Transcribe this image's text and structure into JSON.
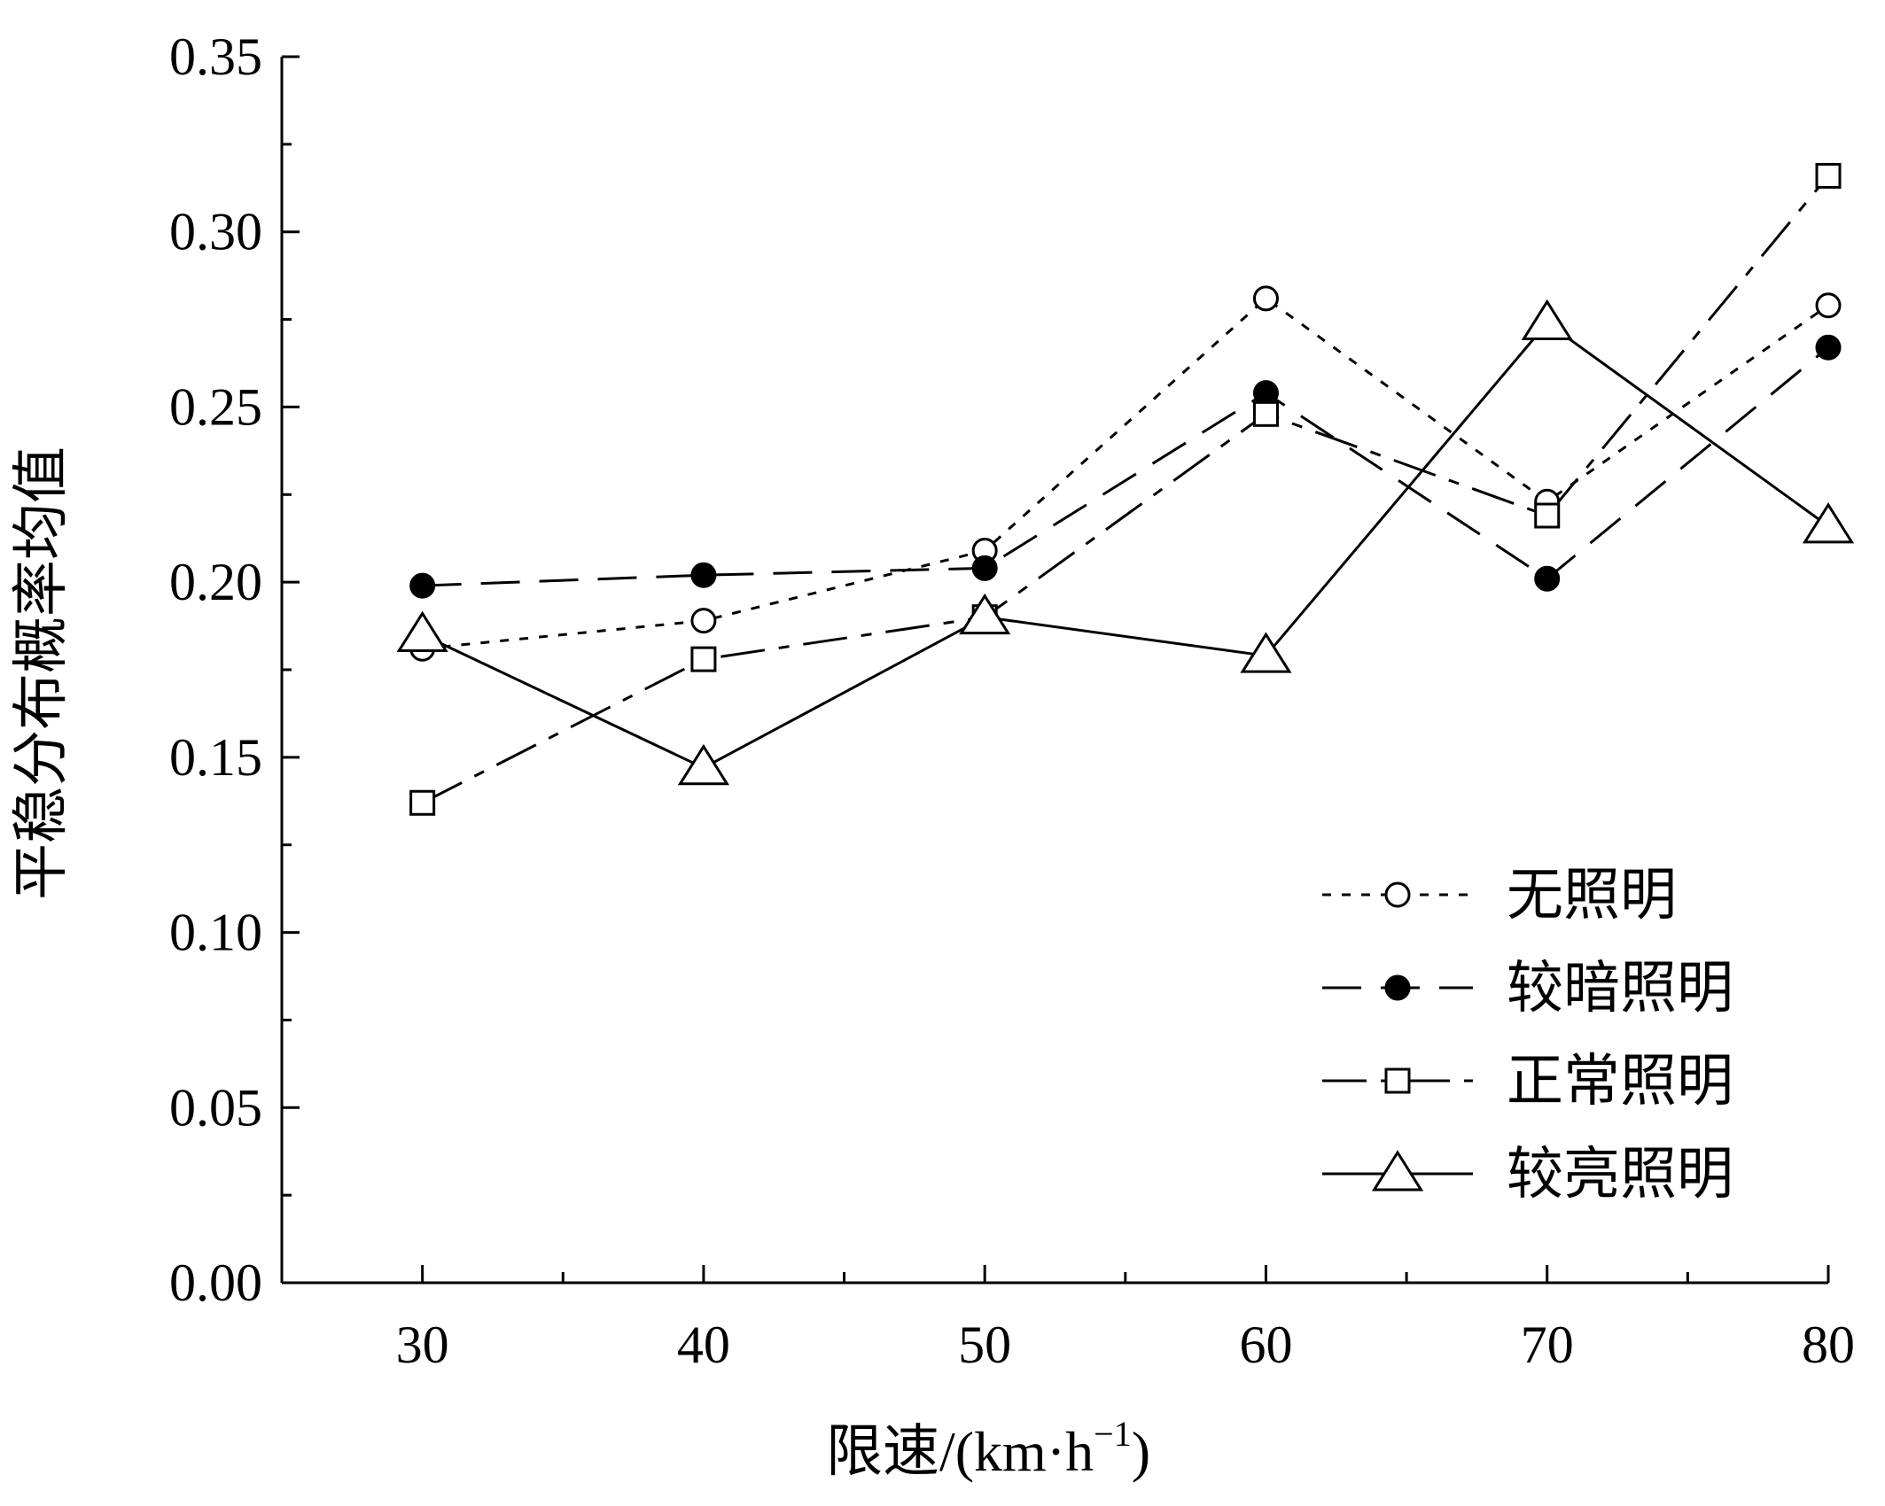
{
  "chart_data": {
    "type": "line",
    "title": "",
    "xlabel": "限速/(km·h",
    "xlabel_sup": "−1",
    "xlabel_close": ")",
    "ylabel": "平稳分布概率均值",
    "x": [
      30,
      40,
      50,
      60,
      70,
      80
    ],
    "x_tick_labels": [
      "30",
      "40",
      "50",
      "60",
      "70",
      "80"
    ],
    "y_tick_labels": [
      "0.00",
      "0.05",
      "0.10",
      "0.15",
      "0.20",
      "0.25",
      "0.30",
      "0.35"
    ],
    "xlim": [
      25,
      80
    ],
    "ylim": [
      0,
      0.35
    ],
    "legend_position": "bottom-right",
    "grid": false,
    "series": [
      {
        "name": "无照明",
        "marker": "open-circle",
        "dash": "dotted",
        "values": [
          0.181,
          0.189,
          0.209,
          0.281,
          0.223,
          0.279
        ]
      },
      {
        "name": "较暗照明",
        "marker": "filled-circle",
        "dash": "long-dash",
        "values": [
          0.199,
          0.202,
          0.204,
          0.254,
          0.201,
          0.267
        ]
      },
      {
        "name": "正常照明",
        "marker": "open-square",
        "dash": "dash-dot",
        "values": [
          0.137,
          0.178,
          0.19,
          0.248,
          0.219,
          0.316
        ]
      },
      {
        "name": "较亮照明",
        "marker": "open-triangle",
        "dash": "solid",
        "values": [
          0.185,
          0.147,
          0.19,
          0.179,
          0.274,
          0.216
        ]
      }
    ]
  }
}
